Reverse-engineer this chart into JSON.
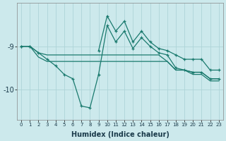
{
  "xlabel": "Humidex (Indice chaleur)",
  "background_color": "#cce9ec",
  "grid_color": "#aed4d8",
  "line_color": "#1a7a6e",
  "x_values": [
    0,
    1,
    2,
    3,
    4,
    5,
    6,
    7,
    8,
    9,
    10,
    11,
    12,
    13,
    14,
    15,
    16,
    17,
    18,
    19,
    20,
    21,
    22,
    23
  ],
  "y_main": [
    -9.0,
    -9.0,
    -9.15,
    -9.3,
    -9.45,
    -9.65,
    -9.75,
    -10.38,
    -10.42,
    -9.65,
    -8.52,
    -8.9,
    -8.65,
    -9.05,
    -8.8,
    -9.0,
    -9.15,
    -9.2,
    -9.5,
    -9.55,
    -9.6,
    -9.6,
    -9.75,
    -9.75
  ],
  "y_upper": [
    -9.0,
    -9.0,
    null,
    null,
    null,
    null,
    null,
    null,
    null,
    -9.1,
    -8.3,
    -8.65,
    -8.42,
    -8.9,
    -8.65,
    -8.9,
    -9.05,
    -9.1,
    -9.2,
    -9.3,
    -9.3,
    -9.3,
    -9.55,
    -9.55
  ],
  "y_flat1": [
    -9.0,
    -9.0,
    -9.15,
    -9.2,
    -9.2,
    -9.2,
    -9.2,
    -9.2,
    -9.2,
    -9.2,
    -9.2,
    -9.2,
    -9.2,
    -9.2,
    -9.2,
    -9.2,
    -9.2,
    -9.35,
    -9.55,
    -9.55,
    -9.6,
    -9.6,
    -9.75,
    -9.75
  ],
  "y_flat2": [
    -9.0,
    -9.0,
    -9.25,
    -9.35,
    -9.35,
    -9.35,
    -9.35,
    -9.35,
    -9.35,
    -9.35,
    -9.35,
    -9.35,
    -9.35,
    -9.35,
    -9.35,
    -9.35,
    -9.35,
    -9.35,
    -9.55,
    -9.55,
    -9.65,
    -9.65,
    -9.8,
    -9.8
  ],
  "ylim": [
    -10.7,
    -8.0
  ],
  "yticks": [
    -10,
    -9
  ],
  "xlim": [
    -0.5,
    23.5
  ]
}
